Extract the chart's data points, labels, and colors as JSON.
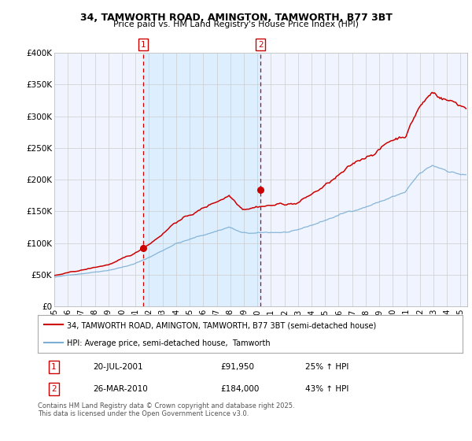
{
  "title1": "34, TAMWORTH ROAD, AMINGTON, TAMWORTH, B77 3BT",
  "title2": "Price paid vs. HM Land Registry's House Price Index (HPI)",
  "legend_line1": "34, TAMWORTH ROAD, AMINGTON, TAMWORTH, B77 3BT (semi-detached house)",
  "legend_line2": "HPI: Average price, semi-detached house,  Tamworth",
  "annotation1_date": "20-JUL-2001",
  "annotation1_price": "£91,950",
  "annotation1_hpi": "25% ↑ HPI",
  "annotation2_date": "26-MAR-2010",
  "annotation2_price": "£184,000",
  "annotation2_hpi": "43% ↑ HPI",
  "footer": "Contains HM Land Registry data © Crown copyright and database right 2025.\nThis data is licensed under the Open Government Licence v3.0.",
  "vline1_x": 2001.55,
  "vline2_x": 2010.23,
  "point1_x": 2001.55,
  "point1_y": 91950,
  "point2_x": 2010.23,
  "point2_y": 184000,
  "red_color": "#cc0000",
  "blue_color": "#7bafd4",
  "shading_color": "#ddeeff",
  "background_color": "#f0f4ff",
  "grid_color": "#cccccc",
  "ylim": [
    0,
    400000
  ],
  "xlim": [
    1995.0,
    2025.5
  ],
  "yticks": [
    0,
    50000,
    100000,
    150000,
    200000,
    250000,
    300000,
    350000,
    400000
  ],
  "ytick_labels": [
    "£0",
    "£50K",
    "£100K",
    "£150K",
    "£200K",
    "£250K",
    "£300K",
    "£350K",
    "£400K"
  ],
  "xtick_years": [
    1995,
    1996,
    1997,
    1998,
    1999,
    2000,
    2001,
    2002,
    2003,
    2004,
    2005,
    2006,
    2007,
    2008,
    2009,
    2010,
    2011,
    2012,
    2013,
    2014,
    2015,
    2016,
    2017,
    2018,
    2019,
    2020,
    2021,
    2022,
    2023,
    2024,
    2025
  ],
  "xtick_labels": [
    "95",
    "96",
    "97",
    "98",
    "99",
    "00",
    "01",
    "02",
    "03",
    "04",
    "05",
    "06",
    "07",
    "08",
    "09",
    "10",
    "11",
    "12",
    "13",
    "14",
    "15",
    "16",
    "17",
    "18",
    "19",
    "20",
    "21",
    "22",
    "23",
    "24",
    "25"
  ]
}
